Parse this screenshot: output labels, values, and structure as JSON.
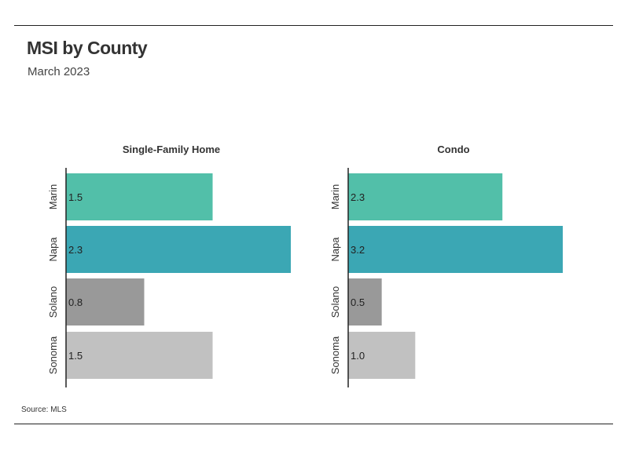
{
  "header": {
    "title": "MSI by County",
    "subtitle": "March 2023"
  },
  "footer": {
    "source": "Source:  MLS"
  },
  "chart_data": [
    {
      "type": "bar",
      "orientation": "horizontal",
      "title": "Single-Family Home",
      "categories": [
        "Marin",
        "Napa",
        "Solano",
        "Sonoma"
      ],
      "values": [
        1.5,
        2.3,
        0.8,
        1.5
      ],
      "value_labels": [
        "1.5",
        "2.3",
        "0.8",
        "1.5"
      ],
      "colors": [
        "#52BFA9",
        "#3BA7B4",
        "#999999",
        "#C1C1C1"
      ],
      "xlim": [
        0,
        2.3
      ],
      "grid": false,
      "legend": "none"
    },
    {
      "type": "bar",
      "orientation": "horizontal",
      "title": "Condo",
      "categories": [
        "Marin",
        "Napa",
        "Solano",
        "Sonoma"
      ],
      "values": [
        2.3,
        3.2,
        0.5,
        1.0
      ],
      "value_labels": [
        "2.3",
        "3.2",
        "0.5",
        "1.0"
      ],
      "colors": [
        "#52BFA9",
        "#3BA7B4",
        "#999999",
        "#C1C1C1"
      ],
      "xlim": [
        0,
        3.2
      ],
      "grid": false,
      "legend": "none"
    }
  ]
}
